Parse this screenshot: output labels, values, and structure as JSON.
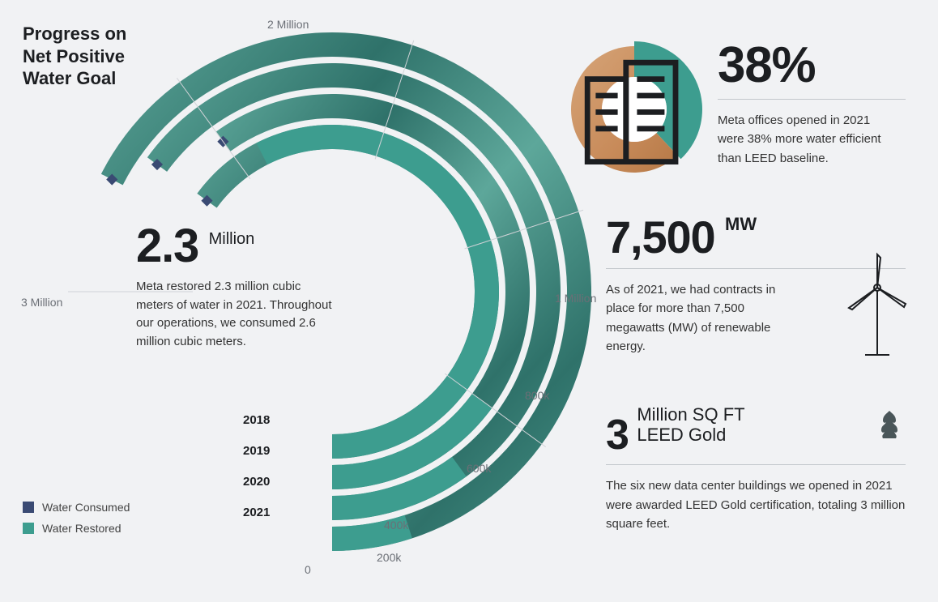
{
  "title": "Progress on Net Positive Water Goal",
  "colors": {
    "background": "#f1f2f4",
    "text": "#1c1e21",
    "textMuted": "#6b6f76",
    "divider": "#c3c7cc",
    "water_texture_dark": "#2f726a",
    "water_texture_light": "#5da79a",
    "consumed": "#3a4a73",
    "restored": "#3d9d8f",
    "restored_light": "#7fc4b8",
    "thumb_warm1": "#d6a579",
    "thumb_warm2": "#c88b5a",
    "thumb_accent": "#e4d35a"
  },
  "radialChart": {
    "type": "radial-bar",
    "axisMax": 3000000,
    "axisLabels": [
      {
        "key": "al-3m",
        "text": "3 Million"
      },
      {
        "key": "al-2m",
        "text": "2 Million"
      },
      {
        "key": "al-1m",
        "text": "1 Million"
      },
      {
        "key": "al-800",
        "text": "800k"
      },
      {
        "key": "al-600",
        "text": "600k"
      },
      {
        "key": "al-400",
        "text": "400k"
      },
      {
        "key": "al-200",
        "text": "200k"
      },
      {
        "key": "al-0",
        "text": "0"
      }
    ],
    "ringWidth": 30,
    "ringGap": 8,
    "outerRadius": 320,
    "series": [
      {
        "year": "2018",
        "consumed": 2700000,
        "restored": 200000
      },
      {
        "year": "2019",
        "consumed": 2600000,
        "restored": 400000
      },
      {
        "year": "2020",
        "consumed": 2400000,
        "restored": 600000
      },
      {
        "year": "2021",
        "consumed": 2600000,
        "restored": 2300000
      }
    ],
    "yearLabelFontSize": 15,
    "axisLabelFontSize": 14
  },
  "centerStat": {
    "value": "2.3",
    "unit": "Million",
    "desc": "Meta restored 2.3 million cubic meters of water in 2021. Throughout our operations, we consumed 2.6 million cubic meters."
  },
  "legend": {
    "consumed": "Water Consumed",
    "restored": "Water Restored"
  },
  "stat38": {
    "headline": "38%",
    "desc": "Meta offices opened in 2021 were 38% more water efficient than LEED baseline.",
    "donutFraction": 0.38
  },
  "stat7500": {
    "headline": "7,500",
    "unit": "MW",
    "desc": "As of 2021, we had contracts in place for more than 7,500 megawatts (MW) of renewable energy."
  },
  "stat3m": {
    "headline": "3",
    "unitLine1": "Million SQ FT",
    "unitLine2": "LEED Gold",
    "desc": "The six new data center buildings we opened in 2021 were awarded LEED Gold certification, totaling 3 million square feet."
  }
}
